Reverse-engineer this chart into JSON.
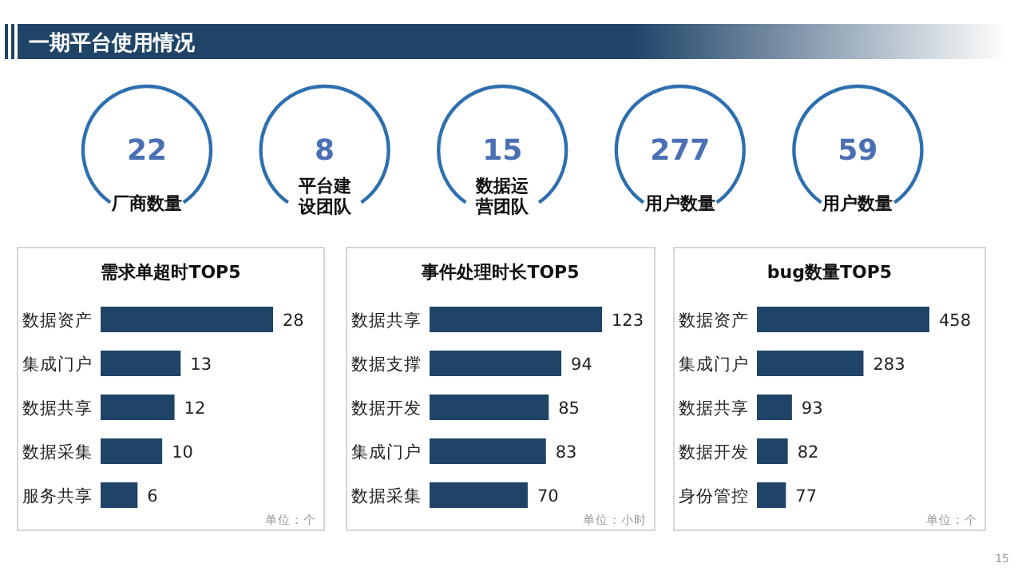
{
  "chart_data": [
    {
      "type": "other",
      "title": "一期平台使用情况",
      "categories": [
        "厂商数量",
        "平台建设团队",
        "数据运营团队",
        "用户数量",
        "用户数量"
      ],
      "values": [
        22,
        8,
        15,
        277,
        59
      ],
      "color": "#2e6fb0",
      "data_labels": true,
      "annotations": [
        "15"
      ]
    },
    {
      "type": "bar",
      "orientation": "horizontal",
      "title": "需求单超时TOP5",
      "categories": [
        "数据资产",
        "集成门户",
        "数据共享",
        "数据采集",
        "服务共享"
      ],
      "values": [
        28,
        13,
        12,
        10,
        6
      ],
      "color": "#1f4468",
      "data_labels": true,
      "annotations": [
        "单位：个"
      ]
    },
    {
      "type": "bar",
      "orientation": "horizontal",
      "title": "事件处理时长TOP5",
      "categories": [
        "数据共享",
        "数据支撑",
        "数据开发",
        "集成门户",
        "数据采集"
      ],
      "values": [
        123,
        94,
        85,
        83,
        70
      ],
      "color": "#1f4468",
      "data_labels": true,
      "annotations": [
        "单位：小时"
      ]
    },
    {
      "type": "bar",
      "orientation": "horizontal",
      "title": "bug数量TOP5",
      "categories": [
        "数据资产",
        "集成门户",
        "数据共享",
        "数据开发",
        "身份管控"
      ],
      "values": [
        458,
        283,
        93,
        82,
        77
      ],
      "color": "#1f4468",
      "data_labels": true,
      "annotations": [
        "单位：个"
      ]
    }
  ]
}
